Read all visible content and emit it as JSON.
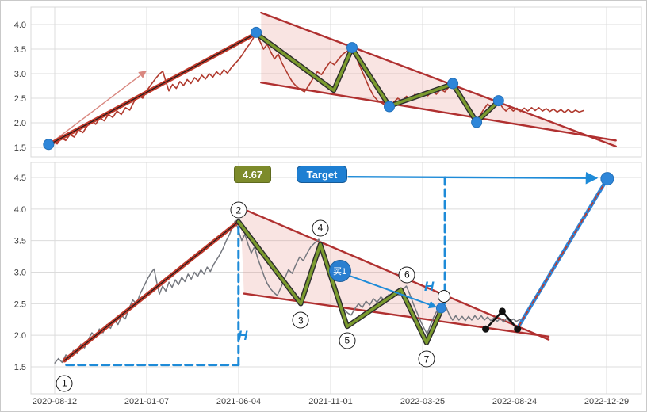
{
  "colors": {
    "grid": "#dcdcdc",
    "panel_border": "#d8d8d8",
    "price_top": "#b03a2e",
    "price_bottom": "#75787f",
    "trend_red": "#c0392b",
    "trend_core": "#1d1d1d",
    "wedge_line": "#b03030",
    "wedge_fill": "rgba(225,120,110,0.20)",
    "zig_green": "#7a9a2e",
    "zig_edge": "#2d2d2d",
    "dot_blue": "#2e86d9",
    "dot_blue_edge": "#2471ba",
    "accent_blue": "#1e8bd8",
    "arrow_red": "#d98880",
    "black": "#111111",
    "proj_red": "#c0392b",
    "label_olive": "#7d8b2b",
    "label_blue": "#1e7fd2"
  },
  "labels": {
    "measure": "4.67",
    "target": "Target",
    "buy": "买1",
    "h": "H",
    "waves": [
      "1",
      "2",
      "3",
      "4",
      "5",
      "6",
      "7"
    ]
  },
  "chart_data": {
    "type": "line",
    "title": "",
    "x_domain": [
      "2020-08-12",
      "2022-12-29"
    ],
    "price": [
      [
        0.029,
        1.56
      ],
      [
        0.036,
        1.63
      ],
      [
        0.043,
        1.57
      ],
      [
        0.05,
        1.69
      ],
      [
        0.057,
        1.64
      ],
      [
        0.064,
        1.76
      ],
      [
        0.071,
        1.71
      ],
      [
        0.078,
        1.86
      ],
      [
        0.085,
        1.8
      ],
      [
        0.092,
        1.93
      ],
      [
        0.099,
        2.04
      ],
      [
        0.106,
        1.97
      ],
      [
        0.113,
        2.1
      ],
      [
        0.12,
        2.04
      ],
      [
        0.127,
        2.17
      ],
      [
        0.134,
        2.11
      ],
      [
        0.141,
        2.24
      ],
      [
        0.148,
        2.17
      ],
      [
        0.155,
        2.31
      ],
      [
        0.162,
        2.26
      ],
      [
        0.169,
        2.43
      ],
      [
        0.176,
        2.56
      ],
      [
        0.183,
        2.5
      ],
      [
        0.19,
        2.66
      ],
      [
        0.197,
        2.78
      ],
      [
        0.204,
        2.9
      ],
      [
        0.211,
        3.0
      ],
      [
        0.216,
        3.05
      ],
      [
        0.221,
        2.84
      ],
      [
        0.226,
        2.65
      ],
      [
        0.232,
        2.78
      ],
      [
        0.238,
        2.7
      ],
      [
        0.244,
        2.84
      ],
      [
        0.25,
        2.76
      ],
      [
        0.256,
        2.88
      ],
      [
        0.262,
        2.8
      ],
      [
        0.268,
        2.92
      ],
      [
        0.274,
        2.85
      ],
      [
        0.28,
        2.97
      ],
      [
        0.286,
        2.89
      ],
      [
        0.292,
        3.0
      ],
      [
        0.298,
        2.93
      ],
      [
        0.304,
        3.04
      ],
      [
        0.31,
        2.97
      ],
      [
        0.316,
        3.08
      ],
      [
        0.322,
        3.01
      ],
      [
        0.328,
        3.12
      ],
      [
        0.334,
        3.2
      ],
      [
        0.34,
        3.28
      ],
      [
        0.346,
        3.38
      ],
      [
        0.352,
        3.5
      ],
      [
        0.358,
        3.6
      ],
      [
        0.364,
        3.72
      ],
      [
        0.369,
        3.82
      ],
      [
        0.375,
        3.66
      ],
      [
        0.381,
        3.5
      ],
      [
        0.387,
        3.6
      ],
      [
        0.393,
        3.44
      ],
      [
        0.399,
        3.3
      ],
      [
        0.405,
        3.4
      ],
      [
        0.411,
        3.22
      ],
      [
        0.417,
        3.08
      ],
      [
        0.423,
        2.94
      ],
      [
        0.429,
        2.82
      ],
      [
        0.435,
        2.74
      ],
      [
        0.441,
        2.68
      ],
      [
        0.448,
        2.63
      ],
      [
        0.455,
        2.76
      ],
      [
        0.462,
        2.9
      ],
      [
        0.469,
        3.04
      ],
      [
        0.476,
        2.98
      ],
      [
        0.483,
        3.12
      ],
      [
        0.49,
        3.24
      ],
      [
        0.497,
        3.18
      ],
      [
        0.504,
        3.3
      ],
      [
        0.511,
        3.4
      ],
      [
        0.518,
        3.46
      ],
      [
        0.526,
        3.52
      ],
      [
        0.533,
        3.32
      ],
      [
        0.54,
        3.12
      ],
      [
        0.547,
        2.92
      ],
      [
        0.554,
        2.72
      ],
      [
        0.561,
        2.55
      ],
      [
        0.568,
        2.45
      ],
      [
        0.575,
        2.4
      ],
      [
        0.581,
        2.35
      ],
      [
        0.587,
        2.32
      ],
      [
        0.594,
        2.42
      ],
      [
        0.601,
        2.5
      ],
      [
        0.608,
        2.44
      ],
      [
        0.615,
        2.54
      ],
      [
        0.622,
        2.48
      ],
      [
        0.629,
        2.58
      ],
      [
        0.636,
        2.52
      ],
      [
        0.643,
        2.61
      ],
      [
        0.65,
        2.55
      ],
      [
        0.657,
        2.64
      ],
      [
        0.664,
        2.58
      ],
      [
        0.671,
        2.68
      ],
      [
        0.678,
        2.63
      ],
      [
        0.684,
        2.72
      ],
      [
        0.691,
        2.78
      ],
      [
        0.698,
        2.64
      ],
      [
        0.705,
        2.48
      ],
      [
        0.712,
        2.34
      ],
      [
        0.719,
        2.2
      ],
      [
        0.725,
        2.1
      ],
      [
        0.73,
        2.02
      ],
      [
        0.736,
        2.16
      ],
      [
        0.742,
        2.28
      ],
      [
        0.748,
        2.38
      ],
      [
        0.754,
        2.32
      ],
      [
        0.76,
        2.4
      ],
      [
        0.766,
        2.44
      ],
      [
        0.772,
        2.32
      ],
      [
        0.778,
        2.24
      ],
      [
        0.784,
        2.31
      ],
      [
        0.79,
        2.24
      ],
      [
        0.796,
        2.3
      ],
      [
        0.802,
        2.23
      ],
      [
        0.808,
        2.3
      ],
      [
        0.814,
        2.24
      ],
      [
        0.82,
        2.31
      ],
      [
        0.826,
        2.25
      ],
      [
        0.832,
        2.31
      ],
      [
        0.838,
        2.24
      ],
      [
        0.844,
        2.29
      ],
      [
        0.85,
        2.23
      ],
      [
        0.856,
        2.28
      ],
      [
        0.862,
        2.22
      ],
      [
        0.868,
        2.27
      ],
      [
        0.874,
        2.21
      ],
      [
        0.88,
        2.27
      ],
      [
        0.886,
        2.21
      ],
      [
        0.892,
        2.26
      ],
      [
        0.898,
        2.22
      ],
      [
        0.905,
        2.25
      ]
    ],
    "panels": {
      "top": {
        "yticks": [
          4.0,
          3.5,
          3.0,
          2.5,
          2.0,
          1.5
        ],
        "ylim": [
          1.35,
          4.3
        ],
        "series": {
          "trend": [
            [
              0.029,
              1.55
            ],
            [
              0.369,
              3.82
            ]
          ],
          "impulse_arrow": [
            [
              0.034,
              1.6
            ],
            [
              0.188,
              3.05
            ]
          ],
          "wedge_upper": [
            [
              0.377,
              4.24
            ],
            [
              0.958,
              1.52
            ]
          ],
          "wedge_lower": [
            [
              0.377,
              2.82
            ],
            [
              0.958,
              1.64
            ]
          ],
          "zigzag": [
            [
              0.369,
              3.82
            ],
            [
              0.496,
              2.66
            ],
            [
              0.526,
              3.52
            ],
            [
              0.587,
              2.34
            ],
            [
              0.691,
              2.79
            ],
            [
              0.73,
              2.02
            ],
            [
              0.766,
              2.44
            ]
          ],
          "pivot_dots": [
            [
              0.029,
              1.56
            ],
            [
              0.369,
              3.84
            ],
            [
              0.526,
              3.53
            ],
            [
              0.587,
              2.33
            ],
            [
              0.691,
              2.8
            ],
            [
              0.73,
              2.01
            ],
            [
              0.766,
              2.45
            ]
          ]
        }
      },
      "bottom": {
        "yticks": [
          4.5,
          4.0,
          3.5,
          3.0,
          2.5,
          2.0,
          1.5
        ],
        "ylim": [
          1.1,
          4.73
        ],
        "xticks": [
          "2020-08-12",
          "2021-01-07",
          "2021-06-04",
          "2021-11-01",
          "2022-03-25",
          "2022-08-24",
          "2022-12-29"
        ],
        "price_transform": {
          "offset": 0.0138,
          "scale": 0.87
        },
        "series": {
          "trend": [
            [
              0.055,
              1.6
            ],
            [
              0.34,
              3.8
            ]
          ],
          "wedge_upper": [
            [
              0.343,
              4.02
            ],
            [
              0.848,
              1.93
            ]
          ],
          "wedge_lower": [
            [
              0.349,
              2.66
            ],
            [
              0.848,
              1.98
            ]
          ],
          "zigzag": [
            [
              0.34,
              3.8
            ],
            [
              0.442,
              2.5
            ],
            [
              0.474,
              3.44
            ],
            [
              0.518,
              2.14
            ],
            [
              0.606,
              2.72
            ],
            [
              0.648,
              1.88
            ],
            [
              0.674,
              2.44
            ]
          ],
          "dash_h": [
            [
              0.058,
              1.53
            ],
            [
              0.34,
              1.53
            ]
          ],
          "dash_v": [
            [
              0.34,
              1.53
            ],
            [
              0.34,
              3.74
            ]
          ],
          "dash_v2": [
            [
              0.678,
              4.5
            ],
            [
              0.678,
              2.42
            ]
          ],
          "target_arrow": [
            [
              0.52,
              4.51
            ],
            [
              0.926,
              4.49
            ]
          ],
          "projection": [
            [
              0.8,
              2.16
            ],
            [
              0.944,
              4.48
            ]
          ],
          "black_path": [
            [
              0.745,
              2.1
            ],
            [
              0.772,
              2.38
            ],
            [
              0.797,
              2.1
            ]
          ],
          "entry_dot": [
            0.672,
            2.43
          ],
          "target_dot": [
            0.944,
            4.48
          ]
        },
        "wave_markers": [
          {
            "label": "1",
            "f": 0.055,
            "p": 1.24
          },
          {
            "label": "2",
            "f": 0.34,
            "p": 3.98
          },
          {
            "label": "3",
            "f": 0.442,
            "p": 2.24
          },
          {
            "label": "4",
            "f": 0.474,
            "p": 3.7
          },
          {
            "label": "5",
            "f": 0.518,
            "p": 1.92
          },
          {
            "label": "6",
            "f": 0.616,
            "p": 2.96
          },
          {
            "label": "7",
            "f": 0.648,
            "p": 1.62
          }
        ],
        "breakout_circle": {
          "f": 0.676,
          "p": 2.62
        },
        "buy_marker": {
          "label": "买1",
          "f": 0.506,
          "p": 3.02,
          "arrow_to": [
            0.663,
            2.45
          ]
        },
        "h_markers": [
          {
            "f": 0.352,
            "p": 1.95
          },
          {
            "f": 0.657,
            "p": 2.74
          }
        ],
        "target_price": "4.67"
      }
    }
  }
}
